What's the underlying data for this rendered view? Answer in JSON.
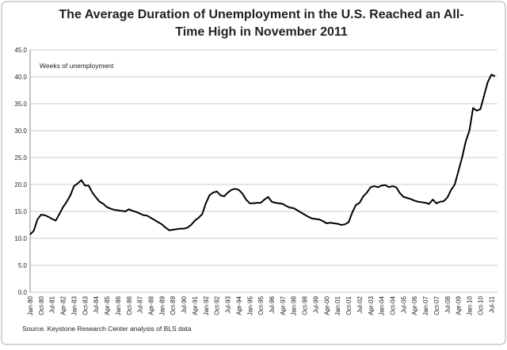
{
  "chart_data": {
    "type": "line",
    "title": "The Average Duration of Unemployment in the U.S. Reached an All-Time High in November 2011",
    "annotation": "Weeks of unemployment",
    "source": "Source. Keystone Research Center analysis of BLS data",
    "color": "#000000",
    "ylim": [
      0,
      45
    ],
    "yticks": [
      {
        "value": 0,
        "label": "0.0"
      },
      {
        "value": 5,
        "label": "5.0"
      },
      {
        "value": 10,
        "label": "10.0"
      },
      {
        "value": 15,
        "label": "15.0"
      },
      {
        "value": 20,
        "label": "20.0"
      },
      {
        "value": 25,
        "label": "25.0"
      },
      {
        "value": 30,
        "label": "30.0"
      },
      {
        "value": 35,
        "label": "35.0"
      },
      {
        "value": 40,
        "label": "40.0"
      },
      {
        "value": 45,
        "label": "45.0"
      }
    ],
    "categories": [
      "Jan-80",
      null,
      null,
      "Oct-80",
      null,
      null,
      "Jul-81",
      null,
      null,
      "Apr-82",
      null,
      null,
      "Jan-83",
      null,
      null,
      "Oct-83",
      null,
      null,
      "Jul-84",
      null,
      null,
      "Apr-85",
      null,
      null,
      "Jan-86",
      null,
      null,
      "Oct-86",
      null,
      null,
      "Jul-87",
      null,
      null,
      "Apr-88",
      null,
      null,
      "Jan-89",
      null,
      null,
      "Oct-89",
      null,
      null,
      "Jul-90",
      null,
      null,
      "Apr-91",
      null,
      null,
      "Jan-92",
      null,
      null,
      "Oct-92",
      null,
      null,
      "Jul-93",
      null,
      null,
      "Apr-94",
      null,
      null,
      "Jan-95",
      null,
      null,
      "Oct-95",
      null,
      null,
      "Jul-96",
      null,
      null,
      "Apr-97",
      null,
      null,
      "Jan-98",
      null,
      null,
      "Oct-98",
      null,
      null,
      "Jul-99",
      null,
      null,
      "Apr-00",
      null,
      null,
      "Jan-01",
      null,
      null,
      "Oct-01",
      null,
      null,
      "Jul-02",
      null,
      null,
      "Apr-03",
      null,
      null,
      "Jan-04",
      null,
      null,
      "Oct-04",
      null,
      null,
      "Jul-05",
      null,
      null,
      "Apr-06",
      null,
      null,
      "Jan-07",
      null,
      null,
      "Oct-07",
      null,
      null,
      "Jul-08",
      null,
      null,
      "Apr-09",
      null,
      null,
      "Jan-10",
      null,
      null,
      "Oct-10",
      null,
      null,
      "Jul-11",
      null
    ],
    "values": [
      10.7,
      11.4,
      13.5,
      14.4,
      14.3,
      14.0,
      13.6,
      13.3,
      14.5,
      15.8,
      16.8,
      18.0,
      19.7,
      20.2,
      20.8,
      19.8,
      19.8,
      18.5,
      17.6,
      16.8,
      16.4,
      15.8,
      15.5,
      15.3,
      15.2,
      15.1,
      15.0,
      15.4,
      15.1,
      14.9,
      14.6,
      14.3,
      14.2,
      13.8,
      13.4,
      13.0,
      12.6,
      12.0,
      11.5,
      11.6,
      11.7,
      11.8,
      11.8,
      12.0,
      12.5,
      13.3,
      13.8,
      14.5,
      16.5,
      18.0,
      18.5,
      18.7,
      18.0,
      17.8,
      18.5,
      19.0,
      19.2,
      19.0,
      18.3,
      17.2,
      16.5,
      16.5,
      16.6,
      16.6,
      17.2,
      17.7,
      16.8,
      16.6,
      16.5,
      16.4,
      16.0,
      15.7,
      15.6,
      15.2,
      14.8,
      14.4,
      14.0,
      13.7,
      13.6,
      13.5,
      13.2,
      12.8,
      12.9,
      12.8,
      12.7,
      12.5,
      12.6,
      13.0,
      14.8,
      16.2,
      16.6,
      17.8,
      18.5,
      19.5,
      19.7,
      19.5,
      19.8,
      19.9,
      19.5,
      19.7,
      19.5,
      18.4,
      17.7,
      17.5,
      17.3,
      17.0,
      16.8,
      16.7,
      16.6,
      16.4,
      17.2,
      16.5,
      16.8,
      16.9,
      17.6,
      19.0,
      20.0,
      22.5,
      25.0,
      28.0,
      30.0,
      34.2,
      33.7,
      34.0,
      36.5,
      39.0,
      40.4,
      40.1
    ]
  }
}
